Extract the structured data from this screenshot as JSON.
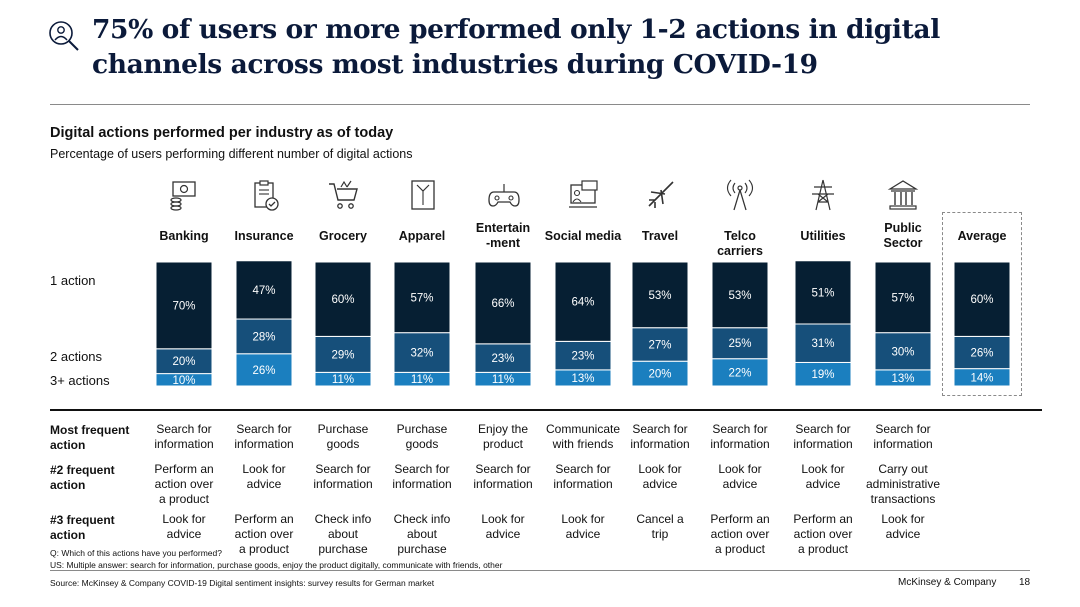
{
  "page": {
    "title": "75% of users or more performed only 1-2 actions in digital channels across most industries during COVID-19",
    "title_icon": "magnifier-user-icon"
  },
  "chart_data": {
    "type": "bar",
    "stacked": true,
    "title": "Digital actions performed per industry as of today",
    "subtitle": "Percentage of users performing different number of digital actions",
    "categories": [
      "Banking",
      "Insurance",
      "Grocery",
      "Apparel",
      "Entertain\n-ment",
      "Social media",
      "Travel",
      "Telco carriers",
      "Utilities",
      "Public\nSector",
      "Average"
    ],
    "category_icons": [
      "money-icon",
      "clipboard-check-icon",
      "shopping-cart-icon",
      "shirt-icon",
      "gamepad-icon",
      "social-media-icon",
      "airplane-icon",
      "antenna-tower-icon",
      "power-pylon-icon",
      "government-building-icon",
      ""
    ],
    "series": [
      {
        "name": "3+ actions",
        "color": "#1b7fbf",
        "values": [
          10,
          26,
          11,
          11,
          11,
          13,
          20,
          22,
          19,
          13,
          14
        ]
      },
      {
        "name": "2 actions",
        "color": "#164f7a",
        "values": [
          20,
          28,
          29,
          32,
          23,
          23,
          27,
          25,
          31,
          30,
          26
        ]
      },
      {
        "name": "1 action",
        "color": "#061f33",
        "values": [
          70,
          47,
          60,
          57,
          66,
          64,
          53,
          53,
          51,
          57,
          60
        ]
      }
    ],
    "label_suffix": "%",
    "ylim": [
      0,
      100
    ],
    "highlight": "Average"
  },
  "actions": {
    "rows": [
      {
        "label": "Most frequent\naction",
        "values": [
          "Search for\ninformation",
          "Search for\ninformation",
          "Purchase\ngoods",
          "Purchase\ngoods",
          "Enjoy the\nproduct",
          "Communicate\nwith friends",
          "Search for\ninformation",
          "Search for\ninformation",
          "Search for\ninformation",
          "Search for\ninformation"
        ]
      },
      {
        "label": "#2 frequent\naction",
        "values": [
          "Perform an\naction over\na product",
          "Look for\nadvice",
          "Search for\ninformation",
          "Search for\ninformation",
          "Search for\ninformation",
          "Search for\ninformation",
          "Look for\nadvice",
          "Look for\nadvice",
          "Look for\nadvice",
          "Carry out\nadministrative\ntransactions"
        ]
      },
      {
        "label": "#3 frequent\naction",
        "values": [
          "Look for\nadvice",
          "Perform an\naction over\na product",
          "Check info\nabout\npurchase",
          "Check info\nabout\npurchase",
          "Look for\nadvice",
          "Look for\nadvice",
          "Cancel a\ntrip",
          "Perform an\naction over\na product",
          "Perform an\naction over\na product",
          "Look for\nadvice"
        ]
      }
    ]
  },
  "footnotes": {
    "q": "Q: Which of this actions have you performed?",
    "us": "US: Multiple answer: search for information, purchase goods, enjoy the product digitally, communicate with friends, other"
  },
  "footer": {
    "source": "Source: McKinsey & Company COVID-19 Digital sentiment insights: survey results for German market",
    "brand": "McKinsey & Company",
    "page_number": "18"
  }
}
